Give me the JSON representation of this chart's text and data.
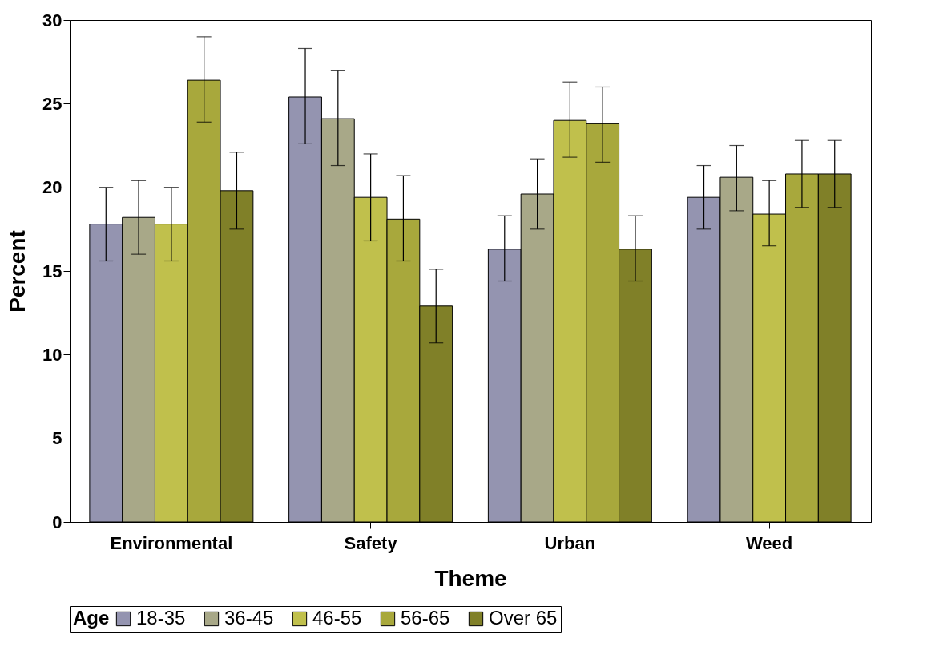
{
  "chart_data": {
    "type": "bar",
    "xlabel": "Theme",
    "ylabel": "Percent",
    "legend_title": "Age",
    "legend": "bottom",
    "grid": false,
    "categories": [
      "Environmental",
      "Safety",
      "Urban",
      "Weed"
    ],
    "ylim": [
      0,
      30
    ],
    "yticks": [
      0,
      5,
      10,
      15,
      20,
      25,
      30
    ],
    "series": [
      {
        "name": "18-35",
        "color": "#9494b0",
        "values": [
          17.8,
          25.4,
          16.3,
          19.4
        ],
        "errors": [
          [
            15.6,
            20.0
          ],
          [
            22.6,
            28.3
          ],
          [
            14.4,
            18.3
          ],
          [
            17.5,
            21.3
          ]
        ]
      },
      {
        "name": "36-45",
        "color": "#a8a888",
        "values": [
          18.2,
          24.1,
          19.6,
          20.6
        ],
        "errors": [
          [
            16.0,
            20.4
          ],
          [
            21.3,
            27.0
          ],
          [
            17.5,
            21.7
          ],
          [
            18.6,
            22.5
          ]
        ]
      },
      {
        "name": "46-55",
        "color": "#c0c04c",
        "values": [
          17.8,
          19.4,
          24.0,
          18.4
        ],
        "errors": [
          [
            15.6,
            20.0
          ],
          [
            16.8,
            22.0
          ],
          [
            21.8,
            26.3
          ],
          [
            16.5,
            20.4
          ]
        ]
      },
      {
        "name": "56-65",
        "color": "#a8a83c",
        "values": [
          26.4,
          18.1,
          23.8,
          20.8
        ],
        "errors": [
          [
            23.9,
            29.0
          ],
          [
            15.6,
            20.7
          ],
          [
            21.5,
            26.0
          ],
          [
            18.8,
            22.8
          ]
        ]
      },
      {
        "name": "Over 65",
        "color": "#808028",
        "values": [
          19.8,
          12.9,
          16.3,
          20.8
        ],
        "errors": [
          [
            17.5,
            22.1
          ],
          [
            10.7,
            15.1
          ],
          [
            14.4,
            18.3
          ],
          [
            18.8,
            22.8
          ]
        ]
      }
    ]
  }
}
